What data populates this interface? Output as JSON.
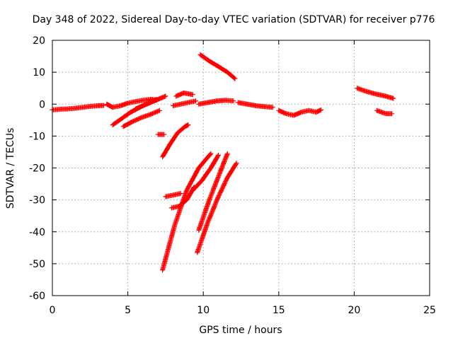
{
  "chart_data": {
    "type": "scatter",
    "title": "Day 348 of 2022, Sidereal Day-to-day VTEC variation (SDTVAR) for receiver p776",
    "xlabel": "GPS time / hours",
    "ylabel": "SDTVAR / TECUs",
    "xlim": [
      0,
      25
    ],
    "ylim": [
      -60,
      20
    ],
    "xticks": [
      "0",
      "5",
      "10",
      "15",
      "20",
      "25"
    ],
    "yticks": [
      "20",
      "10",
      "0",
      "-10",
      "-20",
      "-30",
      "-40",
      "-50",
      "-60"
    ],
    "grid": true,
    "marker": "plus",
    "series_color": "#ff0000",
    "segments": [
      {
        "x": [
          0.0,
          0.5,
          1.0,
          1.5,
          2.0,
          2.5,
          3.0,
          3.4
        ],
        "y": [
          -1.8,
          -1.6,
          -1.5,
          -1.3,
          -1.0,
          -0.7,
          -0.5,
          -0.4
        ]
      },
      {
        "x": [
          3.6,
          4.0,
          4.5,
          5.0,
          5.5,
          6.0,
          6.5,
          6.9
        ],
        "y": [
          0.0,
          -1.0,
          -0.5,
          0.3,
          0.8,
          1.2,
          1.5,
          1.3
        ]
      },
      {
        "x": [
          4.0,
          4.6,
          5.2,
          5.8,
          6.4,
          6.9
        ],
        "y": [
          -6.5,
          -4.5,
          -2.5,
          -1.0,
          0.5,
          1.5
        ]
      },
      {
        "x": [
          4.7,
          5.3,
          5.9,
          6.5,
          7.1
        ],
        "y": [
          -7.0,
          -5.5,
          -4.2,
          -3.2,
          -2.0
        ]
      },
      {
        "x": [
          5.5,
          6.0,
          6.5,
          7.0,
          7.5
        ],
        "y": [
          -1.5,
          -0.5,
          0.5,
          1.5,
          2.5
        ]
      },
      {
        "x": [
          7.0,
          7.4
        ],
        "y": [
          -9.5,
          -9.5
        ]
      },
      {
        "x": [
          7.3,
          7.8,
          8.3,
          8.8,
          9.0
        ],
        "y": [
          -16.5,
          -12.5,
          -9.0,
          -7.0,
          -6.5
        ]
      },
      {
        "x": [
          8.0,
          8.5,
          9.0,
          9.5
        ],
        "y": [
          -0.5,
          0.0,
          0.5,
          1.0
        ]
      },
      {
        "x": [
          8.2,
          8.7,
          9.3
        ],
        "y": [
          2.5,
          3.5,
          3.0
        ]
      },
      {
        "x": [
          9.7,
          10.3,
          10.9,
          11.5,
          12.0
        ],
        "y": [
          0.0,
          0.5,
          1.0,
          1.2,
          1.0
        ]
      },
      {
        "x": [
          12.3,
          12.9,
          13.5,
          14.1,
          14.6
        ],
        "y": [
          0.5,
          0.0,
          -0.5,
          -0.8,
          -1.0
        ]
      },
      {
        "x": [
          9.8,
          10.4,
          11.0,
          11.6,
          12.1
        ],
        "y": [
          15.5,
          13.5,
          11.8,
          10.0,
          8.0
        ]
      },
      {
        "x": [
          15.0,
          15.5,
          16.0,
          16.5,
          17.0,
          17.5,
          17.8
        ],
        "y": [
          -2.0,
          -3.0,
          -3.5,
          -2.5,
          -2.0,
          -2.5,
          -1.8
        ]
      },
      {
        "x": [
          20.2,
          20.8,
          21.4,
          22.0,
          22.6
        ],
        "y": [
          5.0,
          4.0,
          3.2,
          2.6,
          1.8
        ]
      },
      {
        "x": [
          21.5,
          22.1,
          22.5
        ],
        "y": [
          -2.0,
          -3.0,
          -3.0
        ]
      },
      {
        "x": [
          7.3,
          8.1,
          8.9,
          9.7,
          10.5
        ],
        "y": [
          -52.0,
          -38.0,
          -27.0,
          -20.0,
          -15.5
        ]
      },
      {
        "x": [
          7.5,
          8.0,
          8.5
        ],
        "y": [
          -29.0,
          -28.5,
          -28.0
        ]
      },
      {
        "x": [
          7.9,
          8.4,
          8.9,
          9.4
        ],
        "y": [
          -32.5,
          -32.0,
          -30.0,
          -26.0
        ]
      },
      {
        "x": [
          9.7,
          10.4,
          11.1,
          11.6
        ],
        "y": [
          -39.5,
          -30.0,
          -21.5,
          -15.5
        ]
      },
      {
        "x": [
          9.3,
          9.9,
          10.5,
          11.0
        ],
        "y": [
          -27.0,
          -24.0,
          -20.0,
          -16.0
        ]
      },
      {
        "x": [
          9.6,
          10.3,
          11.0,
          11.6,
          12.2
        ],
        "y": [
          -46.5,
          -37.0,
          -29.0,
          -23.0,
          -18.5
        ]
      }
    ]
  }
}
